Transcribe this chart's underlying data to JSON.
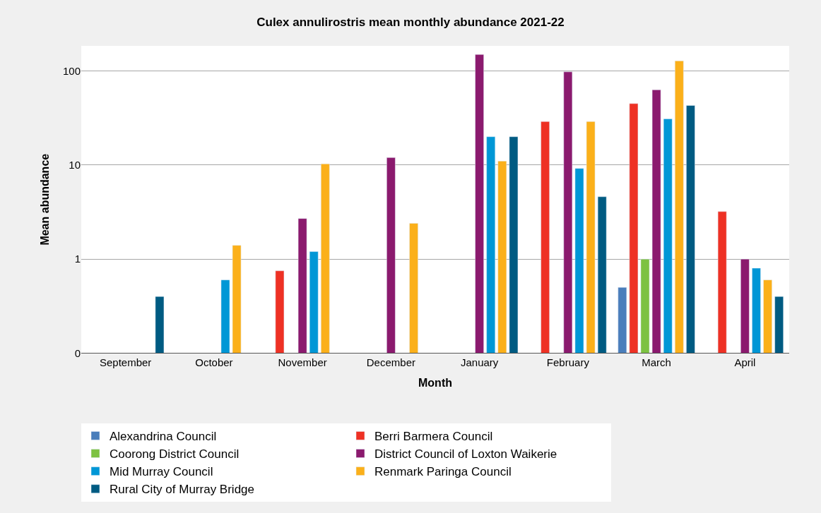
{
  "chart_data": {
    "type": "bar",
    "title": "Culex annulirostris mean monthly abundance 2021-22",
    "xlabel": "Month",
    "ylabel": "Mean abundance",
    "categories": [
      "September",
      "October",
      "November",
      "December",
      "January",
      "February",
      "March",
      "April"
    ],
    "series": [
      {
        "name": "Alexandrina Council",
        "color": "#4a7ebb",
        "values": [
          null,
          null,
          null,
          null,
          null,
          null,
          0.5,
          null
        ]
      },
      {
        "name": "Berri Barmera Council",
        "color": "#ee3124",
        "values": [
          null,
          null,
          0.75,
          null,
          null,
          29,
          45,
          3.2
        ]
      },
      {
        "name": "Coorong District Council",
        "color": "#7dc242",
        "values": [
          null,
          null,
          null,
          null,
          null,
          null,
          1.0,
          null
        ]
      },
      {
        "name": "District Council of Loxton Waikerie",
        "color": "#8b1a6e",
        "values": [
          null,
          null,
          2.7,
          12,
          150,
          98,
          63,
          1.0
        ]
      },
      {
        "name": "Mid Murray Council",
        "color": "#0097d6",
        "values": [
          null,
          0.6,
          1.2,
          null,
          20,
          9.2,
          31,
          0.8
        ]
      },
      {
        "name": "Renmark Paringa Council",
        "color": "#fbb01a",
        "values": [
          null,
          1.4,
          10.3,
          2.4,
          11,
          29,
          128,
          0.6
        ]
      },
      {
        "name": "Rural City of Murray Bridge",
        "color": "#005b82",
        "values": [
          0.4,
          null,
          null,
          null,
          20,
          4.6,
          43,
          0.4
        ]
      }
    ],
    "log": "y",
    "ylim": [
      0.1,
      185
    ],
    "yticks": [
      {
        "value": 0.1,
        "label": "0"
      },
      1,
      10,
      100
    ],
    "grid": "y",
    "legend": "bottom"
  }
}
